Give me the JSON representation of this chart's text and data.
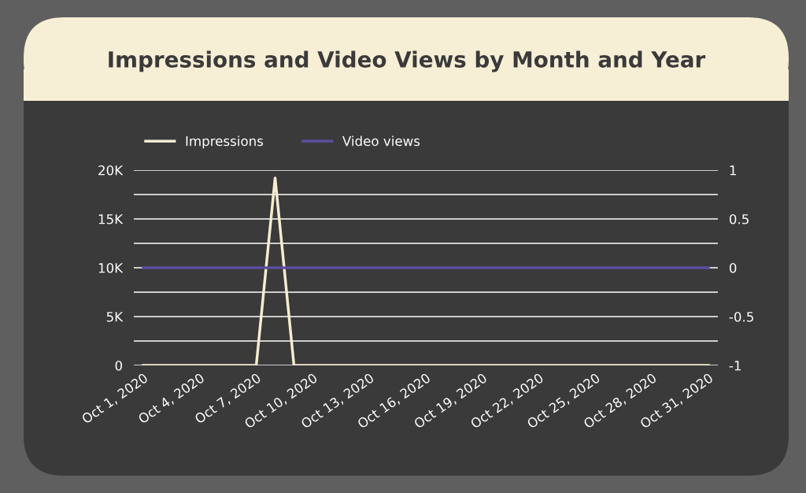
{
  "chart_data": {
    "type": "line",
    "title": "Impressions and Video Views by Month and Year",
    "x": [
      "2020-10-01",
      "2020-10-02",
      "2020-10-03",
      "2020-10-04",
      "2020-10-05",
      "2020-10-06",
      "2020-10-07",
      "2020-10-08",
      "2020-10-09",
      "2020-10-10",
      "2020-10-11",
      "2020-10-12",
      "2020-10-13",
      "2020-10-14",
      "2020-10-15",
      "2020-10-16",
      "2020-10-17",
      "2020-10-18",
      "2020-10-19",
      "2020-10-20",
      "2020-10-21",
      "2020-10-22",
      "2020-10-23",
      "2020-10-24",
      "2020-10-25",
      "2020-10-26",
      "2020-10-27",
      "2020-10-28",
      "2020-10-29",
      "2020-10-30",
      "2020-10-31"
    ],
    "series": [
      {
        "name": "Impressions",
        "color": "#f5ecd0",
        "values": [
          0,
          0,
          0,
          0,
          0,
          0,
          0,
          19200,
          0,
          0,
          0,
          0,
          0,
          0,
          0,
          0,
          0,
          0,
          0,
          0,
          0,
          0,
          0,
          0,
          0,
          0,
          0,
          0,
          0,
          0,
          0
        ]
      },
      {
        "name": "Video views",
        "color": "#5b4ea0",
        "axis": "y2",
        "values": [
          0,
          0,
          0,
          0,
          0,
          0,
          0,
          0,
          0,
          0,
          0,
          0,
          0,
          0,
          0,
          0,
          0,
          0,
          0,
          0,
          0,
          0,
          0,
          0,
          0,
          0,
          0,
          0,
          0,
          0,
          0
        ]
      }
    ],
    "xlim": [
      "2020-09-30T12:00",
      "2020-10-31T12:00"
    ],
    "xticks": [
      {
        "value": "2020-10-01",
        "label": "Oct 1, 2020"
      },
      {
        "value": "2020-10-04",
        "label": "Oct 4, 2020"
      },
      {
        "value": "2020-10-07",
        "label": "Oct 7, 2020"
      },
      {
        "value": "2020-10-10",
        "label": "Oct 10, 2020"
      },
      {
        "value": "2020-10-13",
        "label": "Oct 13, 2020"
      },
      {
        "value": "2020-10-16",
        "label": "Oct 16, 2020"
      },
      {
        "value": "2020-10-19",
        "label": "Oct 19, 2020"
      },
      {
        "value": "2020-10-22",
        "label": "Oct 22, 2020"
      },
      {
        "value": "2020-10-25",
        "label": "Oct 25, 2020"
      },
      {
        "value": "2020-10-28",
        "label": "Oct 28, 2020"
      },
      {
        "value": "2020-10-31",
        "label": "Oct 31, 2020"
      }
    ],
    "ylim": [
      0,
      20000
    ],
    "yticks": [
      0,
      {
        "value": 2500,
        "label": null
      },
      {
        "value": 5000,
        "label": "5K"
      },
      {
        "value": 7500,
        "label": null
      },
      {
        "value": 10000,
        "label": "10K"
      },
      {
        "value": 12500,
        "label": null
      },
      {
        "value": 15000,
        "label": "15K"
      },
      {
        "value": 17500,
        "label": null
      },
      {
        "value": 20000,
        "label": "20K"
      }
    ],
    "y2lim": [
      -1,
      1
    ],
    "y2ticks": [
      -1,
      -0.5,
      0,
      0.5,
      1
    ],
    "grid": "y",
    "legend": "top left",
    "marker": "none",
    "line_style": "solid"
  }
}
